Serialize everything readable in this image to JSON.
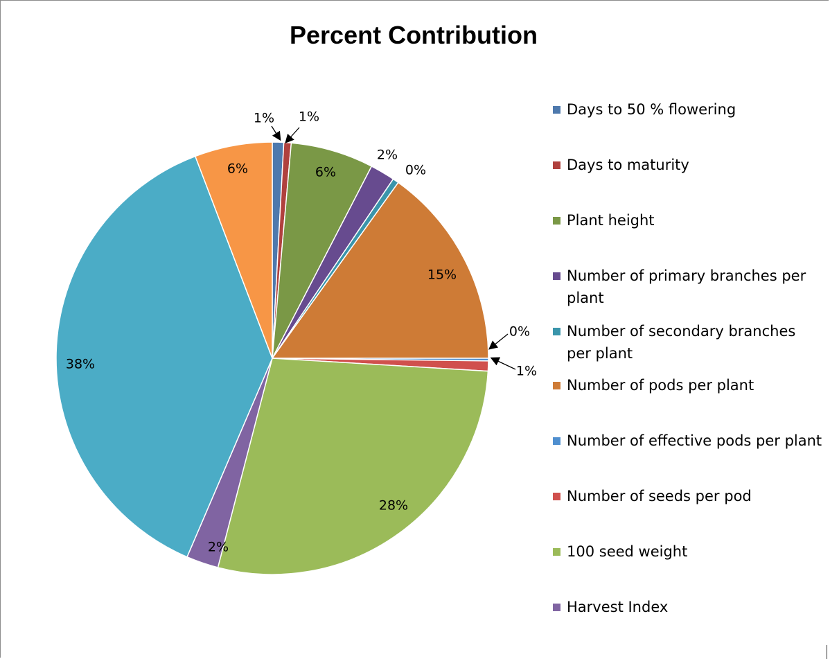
{
  "chart_data": {
    "type": "pie",
    "title": "Percent Contribution",
    "legend_position": "right",
    "start_angle_deg": 0,
    "direction": "clockwise",
    "slices": [
      {
        "label": "Days to 50 % flowering",
        "value": 0.85,
        "data_label": "1%",
        "color": "#4e79ad"
      },
      {
        "label": "Days to maturity",
        "value": 0.55,
        "data_label": "1%",
        "color": "#b0413e"
      },
      {
        "label": "Plant height",
        "value": 6.2,
        "data_label": "6%",
        "color": "#7a9846"
      },
      {
        "label": "Number of primary branches per plant",
        "value": 1.85,
        "data_label": "2%",
        "color": "#674b8f"
      },
      {
        "label": "Number of secondary branches per plant",
        "value": 0.45,
        "data_label": "0%",
        "color": "#3a95ab"
      },
      {
        "label": "Number of pods per plant",
        "value": 15.1,
        "data_label": "15%",
        "color": "#ce7b36"
      },
      {
        "label": "Number of effective pods per plant",
        "value": 0.2,
        "data_label": "0%",
        "color": "#4f8fcf"
      },
      {
        "label": "Number of seeds per pod",
        "value": 0.75,
        "data_label": "1%",
        "color": "#d0504d"
      },
      {
        "label": "100 seed weight",
        "value": 28.1,
        "data_label": "28%",
        "color": "#9bbb59"
      },
      {
        "label": "Harvest Index",
        "value": 2.4,
        "data_label": "2%",
        "color": "#8064a2"
      },
      {
        "label": "",
        "value": 37.75,
        "data_label": "38%",
        "color": "#4bacc6"
      },
      {
        "label": "",
        "value": 5.8,
        "data_label": "6%",
        "color": "#f79646"
      }
    ]
  }
}
